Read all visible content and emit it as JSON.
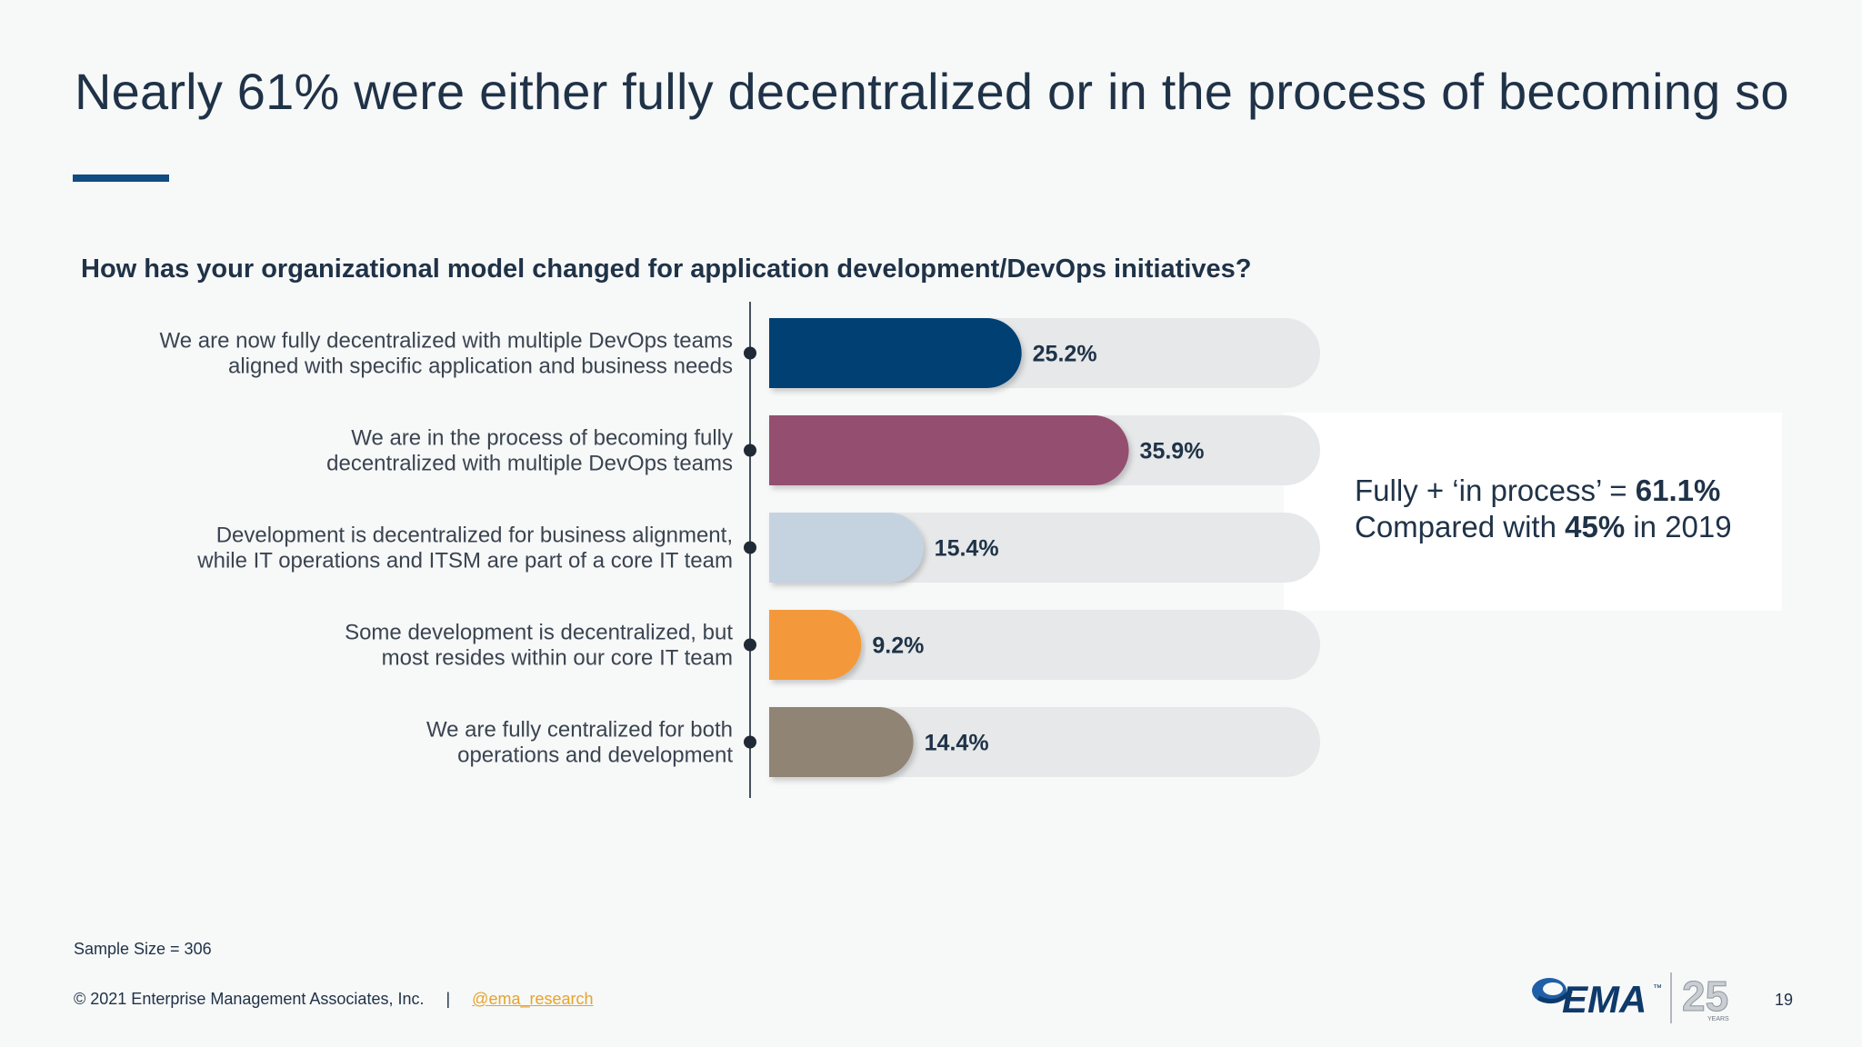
{
  "slide": {
    "title": "Nearly 61% were either fully decentralized or in the process of becoming so",
    "sample_size": "Sample Size = 306",
    "copyright": "© 2021 Enterprise Management Associates, Inc.",
    "separator": "|",
    "twitter_handle": "@ema_research",
    "page_number": "19",
    "accent_color": "#0f4c81"
  },
  "callout": {
    "line1_prefix": "Fully + ‘in process’ = ",
    "line1_value": "61.1%",
    "line2_prefix": "Compared with ",
    "line2_value": "45%",
    "line2_suffix": " in 2019"
  },
  "logo": {
    "brand": "EMA",
    "tm": "™",
    "anniversary": "25",
    "anniversary_sub": "YEARS"
  },
  "chart_data": {
    "type": "bar",
    "orientation": "horizontal",
    "title": "How has your organizational model changed for application development/DevOps initiatives?",
    "xlim": [
      0,
      55
    ],
    "categories": [
      [
        "We are now fully decentralized with multiple DevOps teams",
        "aligned with specific application and business needs"
      ],
      [
        "We are in the process of becoming fully",
        "decentralized with multiple DevOps teams"
      ],
      [
        "Development is decentralized for business alignment,",
        "while IT operations and ITSM are part of a core IT team"
      ],
      [
        "Some development is decentralized, but",
        "most resides within our core IT team"
      ],
      [
        "We are fully centralized for both",
        "operations and development"
      ]
    ],
    "values": [
      25.2,
      35.9,
      15.4,
      9.2,
      14.4
    ],
    "value_labels": [
      "25.2%",
      "35.9%",
      "15.4%",
      "9.2%",
      "14.4%"
    ],
    "colors": [
      "#003f73",
      "#944f70",
      "#c5d3e1",
      "#f4993a",
      "#908475"
    ],
    "track_color": "#e6e8e9",
    "grid": false,
    "legend": "none"
  }
}
